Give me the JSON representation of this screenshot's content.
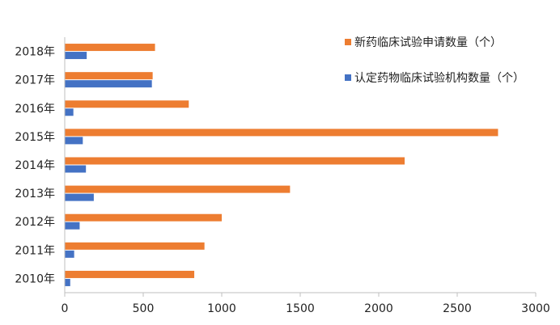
{
  "chart_data": {
    "type": "bar",
    "orientation": "horizontal",
    "categories": [
      "2018年",
      "2017年",
      "2016年",
      "2015年",
      "2014年",
      "2013年",
      "2012年",
      "2011年",
      "2010年"
    ],
    "series": [
      {
        "name": "新药临床试验申请数量（个）",
        "color": "#ED7D31",
        "values": [
          575,
          560,
          790,
          2760,
          2165,
          1435,
          1000,
          890,
          825
        ]
      },
      {
        "name": "认定药物临床试验机构数量（个）",
        "color": "#4472C4",
        "values": [
          140,
          555,
          55,
          115,
          135,
          185,
          95,
          60,
          35
        ]
      }
    ],
    "xlim": [
      0,
      3000
    ],
    "xticks": [
      0,
      500,
      1000,
      1500,
      2000,
      2500,
      3000
    ],
    "grid": false,
    "legend_position": "top-right"
  }
}
